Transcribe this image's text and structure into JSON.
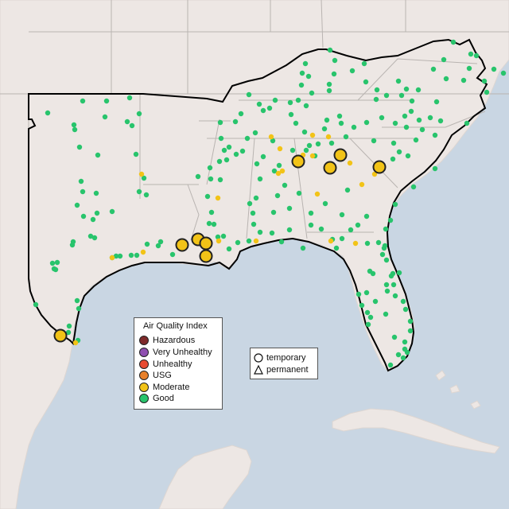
{
  "map": {
    "colors": {
      "water": "#c9d6e3",
      "land": "#ede7e4",
      "land_edge": "#e5e0dc",
      "state_border": "#b9b4b1",
      "region_outline": "#000000",
      "good": "#28c46c",
      "moderate": "#f2c317",
      "outline": "#222222"
    },
    "sites": {
      "good_small": [
        [
          60,
          142
        ],
        [
          104,
          127
        ],
        [
          134,
          127
        ],
        [
          163,
          123
        ],
        [
          160,
          153
        ],
        [
          132,
          147
        ],
        [
          93,
          157
        ],
        [
          94,
          163
        ],
        [
          175,
          143
        ],
        [
          166,
          158
        ],
        [
          100,
          185
        ],
        [
          123,
          195
        ],
        [
          171,
          194
        ],
        [
          102,
          228
        ],
        [
          104,
          241
        ],
        [
          121,
          243
        ],
        [
          97,
          258
        ],
        [
          92,
          304
        ],
        [
          91,
          308
        ],
        [
          105,
          272
        ],
        [
          114,
          297
        ],
        [
          117,
          276
        ],
        [
          122,
          268
        ],
        [
          141,
          266
        ],
        [
          184,
          245
        ],
        [
          181,
          224
        ],
        [
          175,
          241
        ],
        [
          185,
          307
        ],
        [
          199,
          309
        ],
        [
          119,
          299
        ],
        [
          72,
          330
        ],
        [
          66,
          331
        ],
        [
          70,
          339
        ],
        [
          68,
          338
        ],
        [
          146,
          322
        ],
        [
          151,
          322
        ],
        [
          141,
          324
        ],
        [
          165,
          321
        ],
        [
          172,
          321
        ],
        [
          217,
          320
        ],
        [
          202,
          304
        ],
        [
          45,
          383
        ],
        [
          97,
          378
        ],
        [
          99,
          388
        ],
        [
          86,
          418
        ],
        [
          98,
          428
        ],
        [
          87,
          410
        ],
        [
          249,
          222
        ],
        [
          277,
          226
        ],
        [
          264,
          211
        ],
        [
          261,
          247
        ],
        [
          266,
          267
        ],
        [
          269,
          282
        ],
        [
          274,
          298
        ],
        [
          281,
          297
        ],
        [
          263,
          281
        ],
        [
          288,
          313
        ],
        [
          299,
          305
        ],
        [
          278,
          174
        ],
        [
          277,
          154
        ],
        [
          296,
          153
        ],
        [
          303,
          143
        ],
        [
          313,
          119
        ],
        [
          326,
          131
        ],
        [
          339,
          136
        ],
        [
          346,
          126
        ],
        [
          365,
          129
        ],
        [
          375,
          126
        ],
        [
          385,
          133
        ],
        [
          388,
          96
        ],
        [
          392,
          117
        ],
        [
          384,
          80
        ],
        [
          380,
          92
        ],
        [
          379,
          107
        ],
        [
          414,
          106
        ],
        [
          414,
          114
        ],
        [
          415,
          63
        ],
        [
          421,
          76
        ],
        [
          420,
          93
        ],
        [
          443,
          89
        ],
        [
          458,
          80
        ],
        [
          460,
          103
        ],
        [
          474,
          113
        ],
        [
          473,
          125
        ],
        [
          480,
          148
        ],
        [
          505,
          120
        ],
        [
          486,
          120
        ],
        [
          501,
          102
        ],
        [
          511,
          112
        ],
        [
          526,
          113
        ],
        [
          549,
          128
        ],
        [
          554,
          152
        ],
        [
          587,
          155
        ],
        [
          583,
          101
        ],
        [
          561,
          99
        ],
        [
          545,
          87
        ],
        [
          558,
          75
        ],
        [
          570,
          53
        ],
        [
          592,
          68
        ],
        [
          599,
          70
        ],
        [
          590,
          86
        ],
        [
          609,
          102
        ],
        [
          612,
          116
        ],
        [
          621,
          87
        ],
        [
          633,
          92
        ],
        [
          511,
          160
        ],
        [
          497,
          155
        ],
        [
          495,
          180
        ],
        [
          494,
          200
        ],
        [
          513,
          196
        ],
        [
          523,
          176
        ],
        [
          531,
          163
        ],
        [
          547,
          170
        ],
        [
          517,
          140
        ],
        [
          518,
          127
        ],
        [
          509,
          146
        ],
        [
          527,
          151
        ],
        [
          541,
          148
        ],
        [
          502,
          191
        ],
        [
          470,
          177
        ],
        [
          461,
          154
        ],
        [
          445,
          160
        ],
        [
          435,
          172
        ],
        [
          429,
          155
        ],
        [
          427,
          146
        ],
        [
          411,
          151
        ],
        [
          408,
          162
        ],
        [
          417,
          180
        ],
        [
          400,
          181
        ],
        [
          389,
          183
        ],
        [
          385,
          189
        ],
        [
          396,
          196
        ],
        [
          343,
          177
        ],
        [
          331,
          197
        ],
        [
          323,
          206
        ],
        [
          327,
          225
        ],
        [
          345,
          215
        ],
        [
          368,
          189
        ],
        [
          383,
          166
        ],
        [
          372,
          155
        ],
        [
          366,
          144
        ],
        [
          331,
          139
        ],
        [
          321,
          167
        ],
        [
          311,
          174
        ],
        [
          305,
          190
        ],
        [
          297,
          194
        ],
        [
          288,
          185
        ],
        [
          282,
          189
        ],
        [
          285,
          201
        ],
        [
          276,
          203
        ],
        [
          265,
          225
        ],
        [
          322,
          249
        ],
        [
          314,
          256
        ],
        [
          318,
          268
        ],
        [
          319,
          282
        ],
        [
          313,
          303
        ],
        [
          327,
          292
        ],
        [
          342,
          293
        ],
        [
          354,
          304
        ],
        [
          381,
          312
        ],
        [
          423,
          312
        ],
        [
          418,
          301
        ],
        [
          441,
          289
        ],
        [
          462,
          306
        ],
        [
          476,
          305
        ],
        [
          483,
          312
        ],
        [
          485,
          288
        ],
        [
          491,
          277
        ],
        [
          497,
          257
        ],
        [
          520,
          235
        ],
        [
          547,
          212
        ],
        [
          437,
          239
        ],
        [
          409,
          256
        ],
        [
          391,
          268
        ],
        [
          391,
          283
        ],
        [
          404,
          288
        ],
        [
          364,
          262
        ],
        [
          349,
          246
        ],
        [
          358,
          233
        ],
        [
          351,
          208
        ],
        [
          376,
          243
        ],
        [
          344,
          267
        ],
        [
          364,
          289
        ],
        [
          430,
          270
        ],
        [
          430,
          300
        ],
        [
          450,
          283
        ],
        [
          461,
          272
        ],
        [
          486,
          327
        ],
        [
          465,
          341
        ],
        [
          469,
          344
        ],
        [
          481,
          320
        ],
        [
          484,
          309
        ],
        [
          494,
          344
        ],
        [
          495,
          358
        ],
        [
          497,
          372
        ],
        [
          487,
          366
        ],
        [
          472,
          379
        ],
        [
          461,
          368
        ],
        [
          451,
          370
        ],
        [
          455,
          384
        ],
        [
          462,
          393
        ],
        [
          463,
          408
        ],
        [
          466,
          399
        ],
        [
          485,
          395
        ],
        [
          507,
          379
        ],
        [
          510,
          389
        ],
        [
          516,
          404
        ],
        [
          516,
          416
        ],
        [
          509,
          430
        ],
        [
          509,
          439
        ],
        [
          512,
          443
        ],
        [
          501,
          446
        ],
        [
          507,
          450
        ],
        [
          491,
          459
        ],
        [
          496,
          424
        ],
        [
          502,
          343
        ],
        [
          492,
          347
        ],
        [
          486,
          358
        ]
      ],
      "moderate_small": [
        [
          178,
          219
        ],
        [
          180,
          317
        ],
        [
          141,
          324
        ],
        [
          275,
          303
        ],
        [
          274,
          249
        ],
        [
          341,
          172
        ],
        [
          352,
          187
        ],
        [
          355,
          215
        ],
        [
          350,
          218
        ],
        [
          381,
          195
        ],
        [
          393,
          196
        ],
        [
          393,
          170
        ],
        [
          413,
          172
        ],
        [
          440,
          205
        ],
        [
          455,
          232
        ],
        [
          399,
          244
        ],
        [
          416,
          303
        ],
        [
          447,
          306
        ],
        [
          471,
          219
        ],
        [
          95,
          431
        ],
        [
          322,
          303
        ]
      ],
      "moderate_large": [
        [
          76,
          422
        ],
        [
          229,
          308
        ],
        [
          249,
          301
        ],
        [
          259,
          306
        ],
        [
          259,
          322
        ],
        [
          375,
          203
        ],
        [
          415,
          211
        ],
        [
          428,
          195
        ],
        [
          477,
          210
        ]
      ]
    }
  },
  "legend": {
    "aqi": {
      "title": "Air Quality Index",
      "items": [
        {
          "label": "Hazardous",
          "color": "#7e2a2a"
        },
        {
          "label": "Very Unhealthy",
          "color": "#8e4fb0"
        },
        {
          "label": "Unhealthy",
          "color": "#e84b32"
        },
        {
          "label": "USG",
          "color": "#e8802a"
        },
        {
          "label": "Moderate",
          "color": "#f2c317"
        },
        {
          "label": "Good",
          "color": "#28c46c"
        }
      ]
    },
    "monitor": {
      "items": [
        {
          "label": "temporary",
          "shape": "circle"
        },
        {
          "label": "permanent",
          "shape": "triangle"
        }
      ]
    }
  }
}
